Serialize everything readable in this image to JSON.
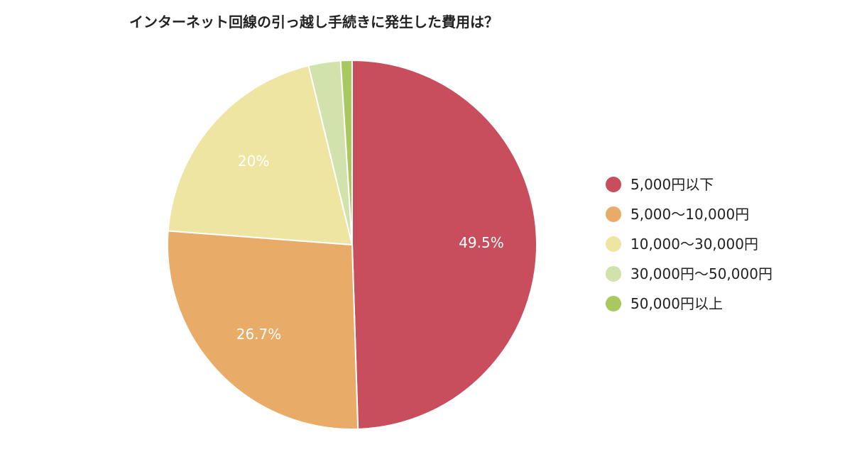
{
  "chart_data": {
    "type": "pie",
    "title": "インターネット回線の引っ越し手続きに発生した費用は？",
    "legend_position": "right",
    "slices": [
      {
        "label": "5,000円以下",
        "value": 49.5,
        "display": "49.5%",
        "color": "#c84e5e"
      },
      {
        "label": "5,000〜10,000円",
        "value": 26.7,
        "display": "26.7%",
        "color": "#e8ab68"
      },
      {
        "label": "10,000〜30,000円",
        "value": 20,
        "display": "20%",
        "color": "#ede5a1"
      },
      {
        "label": "30,000円〜50,000円",
        "value": 2.8,
        "display": "",
        "color": "#d2e2ac"
      },
      {
        "label": "50,000円以上",
        "value": 1,
        "display": "",
        "color": "#a9c960"
      }
    ]
  }
}
